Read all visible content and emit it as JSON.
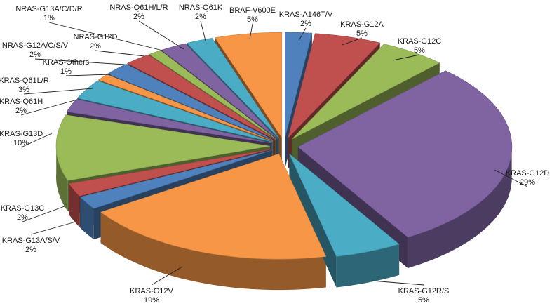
{
  "chart_data": {
    "type": "pie",
    "style": "exploded 3D pie",
    "title": "",
    "slices": [
      {
        "name": "KRAS-A146T/V",
        "value": 2,
        "label": "2%",
        "color": "#4f81bd"
      },
      {
        "name": "KRAS-G12A",
        "value": 5,
        "label": "5%",
        "color": "#c0504d"
      },
      {
        "name": "KRAS-G12C",
        "value": 5,
        "label": "5%",
        "color": "#9bbb59"
      },
      {
        "name": "KRAS-G12D",
        "value": 29,
        "label": "29%",
        "color": "#8064a2"
      },
      {
        "name": "KRAS-G12R/S",
        "value": 5,
        "label": "5%",
        "color": "#4bacc6"
      },
      {
        "name": "KRAS-G12V",
        "value": 19,
        "label": "19%",
        "color": "#f79646"
      },
      {
        "name": "KRAS-G13A/S/V",
        "value": 2,
        "label": "2%",
        "color": "#4f81bd"
      },
      {
        "name": "KRAS-G13C",
        "value": 2,
        "label": "2%",
        "color": "#c0504d"
      },
      {
        "name": "KRAS-G13D",
        "value": 10,
        "label": "10%",
        "color": "#9bbb59"
      },
      {
        "name": "KRAS-Q61H",
        "value": 2,
        "label": "2%",
        "color": "#8064a2"
      },
      {
        "name": "KRAS-Q61L/R",
        "value": 3,
        "label": "3%",
        "color": "#4bacc6"
      },
      {
        "name": "KRAS-Others",
        "value": 1,
        "label": "1%",
        "color": "#f79646"
      },
      {
        "name": "NRAS-G12A/C/S/V",
        "value": 2,
        "label": "2%",
        "color": "#4f81bd"
      },
      {
        "name": "NRAS-G12D",
        "value": 2,
        "label": "2%",
        "color": "#c0504d"
      },
      {
        "name": "NRAS-G13A/C/D/R",
        "value": 1,
        "label": "1%",
        "color": "#9bbb59"
      },
      {
        "name": "NRAS-Q61H/L/R",
        "value": 2,
        "label": "2%",
        "color": "#8064a2"
      },
      {
        "name": "NRAS-Q61K",
        "value": 2,
        "label": "2%",
        "color": "#4bacc6"
      },
      {
        "name": "BRAF-V600E",
        "value": 5,
        "label": "5%",
        "color": "#f79646"
      }
    ]
  }
}
